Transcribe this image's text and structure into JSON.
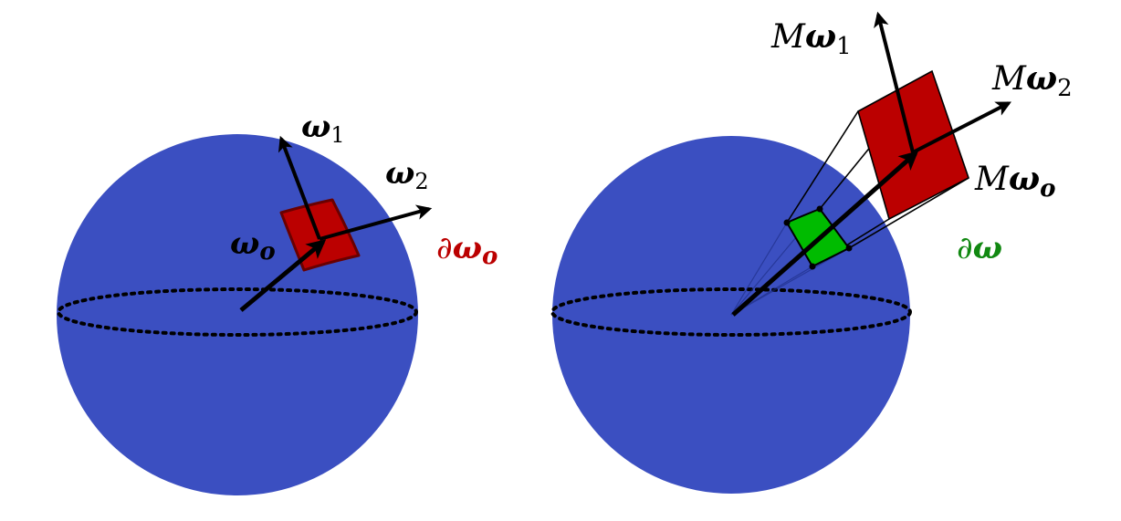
{
  "colors": {
    "sphere": "#3b4fc1",
    "patch_red": "#bb0000",
    "patch_green": "#00bb00",
    "arrow": "#000000",
    "label_red": "#bb0000",
    "label_green": "#118811"
  },
  "left_panel": {
    "label_omega1": {
      "sym": "ω",
      "sub": "1"
    },
    "label_omega2": {
      "sym": "ω",
      "sub": "2"
    },
    "label_omega_o": {
      "sym": "ω",
      "sub": "o"
    },
    "label_d_omega_o": {
      "pre": "∂",
      "sym": "ω",
      "sub": "o"
    }
  },
  "right_panel": {
    "label_M_omega1": {
      "pre": "M",
      "sym": "ω",
      "sub": "1"
    },
    "label_M_omega2": {
      "pre": "M",
      "sym": "ω",
      "sub": "2"
    },
    "label_M_omega_o": {
      "pre": "M",
      "sym": "ω",
      "sub": "o"
    },
    "label_d_omega": {
      "pre": "∂",
      "sym": "ω"
    }
  }
}
